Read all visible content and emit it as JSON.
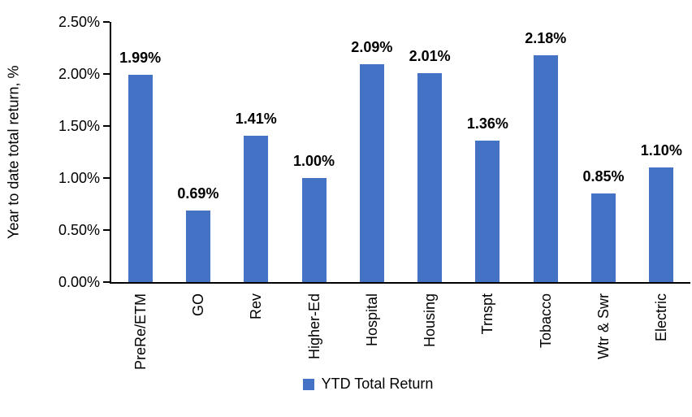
{
  "chart_data": {
    "type": "bar",
    "categories": [
      "PreRe/ETM",
      "GO",
      "Rev",
      "Higher-Ed",
      "Hospital",
      "Housing",
      "Trnspt",
      "Tobacco",
      "Wtr & Swr",
      "Electric"
    ],
    "values": [
      1.99,
      0.69,
      1.41,
      1.0,
      2.09,
      2.01,
      1.36,
      2.18,
      0.85,
      1.1
    ],
    "value_labels": [
      "1.99%",
      "0.69%",
      "1.41%",
      "1.00%",
      "2.09%",
      "2.01%",
      "1.36%",
      "2.18%",
      "0.85%",
      "1.10%"
    ],
    "title": "",
    "xlabel": "",
    "ylabel": "Year to date total return, %",
    "ylim": [
      0,
      2.5
    ],
    "ytick_step": 0.5,
    "ytick_labels": [
      "0.00%",
      "0.50%",
      "1.00%",
      "1.50%",
      "2.00%",
      "2.50%"
    ],
    "grid": false,
    "legend_position": "bottom",
    "legend_label": "YTD Total Return",
    "bar_color": "#4472C4",
    "axis_color": "#000000",
    "text_color": "#000000"
  }
}
